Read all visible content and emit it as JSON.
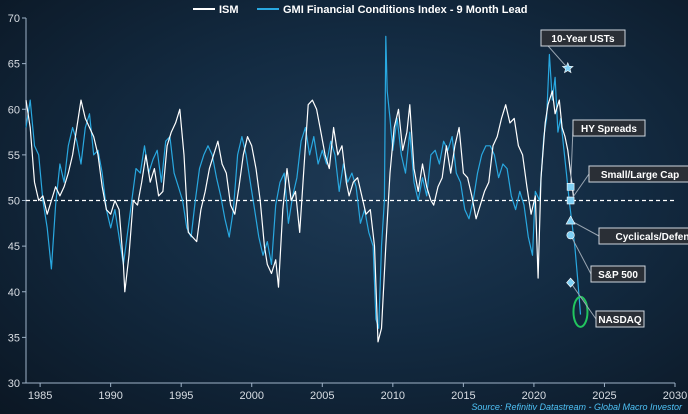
{
  "chart_data": {
    "type": "line",
    "title": "",
    "xlabel": "",
    "ylabel": "",
    "xlim": [
      1984,
      2030
    ],
    "ylim": [
      30,
      70
    ],
    "x_ticks": [
      "1985",
      "1990",
      "1995",
      "2000",
      "2005",
      "2010",
      "2015",
      "2020",
      "2025",
      "2030"
    ],
    "y_ticks": [
      "30",
      "35",
      "40",
      "45",
      "50",
      "55",
      "60",
      "65",
      "70"
    ],
    "reference_line": {
      "y": 50,
      "style": "dashed",
      "color": "#ffffff"
    },
    "grid": false,
    "legend_position": "top-center",
    "series": [
      {
        "name": "ISM",
        "color": "#ffffff",
        "points": [
          [
            1984.0,
            61.0
          ],
          [
            1984.3,
            58.0
          ],
          [
            1984.6,
            52.0
          ],
          [
            1984.9,
            50.0
          ],
          [
            1985.2,
            50.5
          ],
          [
            1985.5,
            48.5
          ],
          [
            1985.8,
            50.0
          ],
          [
            1986.1,
            51.5
          ],
          [
            1986.4,
            50.5
          ],
          [
            1986.7,
            51.5
          ],
          [
            1987.0,
            53.0
          ],
          [
            1987.3,
            55.0
          ],
          [
            1987.6,
            58.0
          ],
          [
            1987.9,
            61.0
          ],
          [
            1988.2,
            59.0
          ],
          [
            1988.5,
            58.0
          ],
          [
            1988.8,
            57.0
          ],
          [
            1989.1,
            55.0
          ],
          [
            1989.4,
            51.5
          ],
          [
            1989.7,
            49.0
          ],
          [
            1990.0,
            48.5
          ],
          [
            1990.3,
            50.0
          ],
          [
            1990.6,
            49.0
          ],
          [
            1990.9,
            43.0
          ],
          [
            1991.0,
            40.0
          ],
          [
            1991.3,
            44.0
          ],
          [
            1991.6,
            50.0
          ],
          [
            1991.9,
            49.5
          ],
          [
            1992.2,
            52.0
          ],
          [
            1992.5,
            55.0
          ],
          [
            1992.8,
            52.0
          ],
          [
            1993.1,
            53.5
          ],
          [
            1993.4,
            50.5
          ],
          [
            1993.7,
            51.0
          ],
          [
            1994.0,
            56.0
          ],
          [
            1994.3,
            57.5
          ],
          [
            1994.6,
            58.5
          ],
          [
            1994.9,
            60.0
          ],
          [
            1995.2,
            55.0
          ],
          [
            1995.5,
            46.5
          ],
          [
            1995.8,
            46.0
          ],
          [
            1996.1,
            45.5
          ],
          [
            1996.4,
            49.0
          ],
          [
            1996.7,
            51.0
          ],
          [
            1997.0,
            53.5
          ],
          [
            1997.3,
            55.0
          ],
          [
            1997.6,
            56.5
          ],
          [
            1997.9,
            54.0
          ],
          [
            1998.2,
            53.0
          ],
          [
            1998.5,
            49.5
          ],
          [
            1998.8,
            48.5
          ],
          [
            1999.1,
            51.5
          ],
          [
            1999.4,
            55.0
          ],
          [
            1999.7,
            57.0
          ],
          [
            2000.0,
            56.0
          ],
          [
            2000.3,
            53.5
          ],
          [
            2000.6,
            50.0
          ],
          [
            2000.9,
            45.0
          ],
          [
            2001.1,
            43.0
          ],
          [
            2001.4,
            42.0
          ],
          [
            2001.7,
            43.5
          ],
          [
            2001.9,
            40.5
          ],
          [
            2002.2,
            49.0
          ],
          [
            2002.5,
            53.5
          ],
          [
            2002.8,
            50.0
          ],
          [
            2003.1,
            51.0
          ],
          [
            2003.4,
            46.5
          ],
          [
            2003.7,
            53.5
          ],
          [
            2004.0,
            60.5
          ],
          [
            2004.3,
            61.0
          ],
          [
            2004.6,
            60.0
          ],
          [
            2004.9,
            57.5
          ],
          [
            2005.2,
            55.0
          ],
          [
            2005.5,
            53.5
          ],
          [
            2005.8,
            58.0
          ],
          [
            2006.1,
            55.0
          ],
          [
            2006.4,
            56.0
          ],
          [
            2006.7,
            52.0
          ],
          [
            2006.9,
            50.5
          ],
          [
            2007.2,
            52.0
          ],
          [
            2007.5,
            52.5
          ],
          [
            2007.8,
            50.5
          ],
          [
            2008.1,
            48.5
          ],
          [
            2008.4,
            49.0
          ],
          [
            2008.7,
            45.0
          ],
          [
            2008.95,
            34.5
          ],
          [
            2009.2,
            36.0
          ],
          [
            2009.5,
            45.0
          ],
          [
            2009.8,
            53.0
          ],
          [
            2010.1,
            58.0
          ],
          [
            2010.4,
            60.0
          ],
          [
            2010.7,
            55.5
          ],
          [
            2011.0,
            57.5
          ],
          [
            2011.2,
            60.5
          ],
          [
            2011.5,
            53.5
          ],
          [
            2011.8,
            51.0
          ],
          [
            2012.1,
            54.0
          ],
          [
            2012.4,
            51.5
          ],
          [
            2012.7,
            50.0
          ],
          [
            2012.9,
            49.5
          ],
          [
            2013.2,
            51.5
          ],
          [
            2013.5,
            52.5
          ],
          [
            2013.8,
            56.0
          ],
          [
            2014.1,
            53.0
          ],
          [
            2014.4,
            56.0
          ],
          [
            2014.7,
            58.0
          ],
          [
            2015.0,
            53.0
          ],
          [
            2015.3,
            52.5
          ],
          [
            2015.6,
            50.5
          ],
          [
            2015.9,
            48.0
          ],
          [
            2016.2,
            49.5
          ],
          [
            2016.5,
            51.0
          ],
          [
            2016.8,
            52.0
          ],
          [
            2017.1,
            56.0
          ],
          [
            2017.4,
            57.0
          ],
          [
            2017.7,
            59.0
          ],
          [
            2018.0,
            60.5
          ],
          [
            2018.3,
            58.5
          ],
          [
            2018.6,
            59.0
          ],
          [
            2018.9,
            56.0
          ],
          [
            2019.2,
            55.0
          ],
          [
            2019.5,
            51.5
          ],
          [
            2019.8,
            48.5
          ],
          [
            2020.1,
            50.5
          ],
          [
            2020.3,
            41.5
          ],
          [
            2020.5,
            52.5
          ],
          [
            2020.8,
            58.5
          ],
          [
            2021.0,
            60.5
          ],
          [
            2021.3,
            62.0
          ],
          [
            2021.5,
            59.5
          ],
          [
            2021.8,
            61.0
          ],
          [
            2022.0,
            58.0
          ],
          [
            2022.2,
            57.0
          ],
          [
            2022.4,
            55.5
          ],
          [
            2022.6,
            53.0
          ],
          [
            2022.8,
            50.5
          ]
        ]
      },
      {
        "name": "GMI Financial Conditions Index - 9 Month Lead",
        "color": "#29a8e0",
        "points": [
          [
            1984.0,
            58.0
          ],
          [
            1984.3,
            61.0
          ],
          [
            1984.6,
            56.0
          ],
          [
            1984.9,
            55.0
          ],
          [
            1985.2,
            50.0
          ],
          [
            1985.5,
            47.0
          ],
          [
            1985.8,
            42.5
          ],
          [
            1986.1,
            49.5
          ],
          [
            1986.4,
            54.0
          ],
          [
            1986.7,
            52.0
          ],
          [
            1987.0,
            56.0
          ],
          [
            1987.3,
            58.0
          ],
          [
            1987.6,
            56.5
          ],
          [
            1987.9,
            54.0
          ],
          [
            1988.2,
            58.0
          ],
          [
            1988.5,
            59.5
          ],
          [
            1988.8,
            55.0
          ],
          [
            1989.1,
            55.5
          ],
          [
            1989.4,
            53.0
          ],
          [
            1989.7,
            49.0
          ],
          [
            1990.0,
            47.0
          ],
          [
            1990.3,
            49.0
          ],
          [
            1990.6,
            46.0
          ],
          [
            1990.9,
            43.0
          ],
          [
            1991.2,
            46.5
          ],
          [
            1991.5,
            50.0
          ],
          [
            1991.8,
            53.5
          ],
          [
            1992.1,
            53.0
          ],
          [
            1992.4,
            56.0
          ],
          [
            1992.7,
            53.0
          ],
          [
            1993.0,
            54.5
          ],
          [
            1993.3,
            55.5
          ],
          [
            1993.6,
            52.0
          ],
          [
            1993.9,
            56.5
          ],
          [
            1994.2,
            57.0
          ],
          [
            1994.5,
            53.0
          ],
          [
            1994.8,
            51.5
          ],
          [
            1995.1,
            50.0
          ],
          [
            1995.4,
            47.0
          ],
          [
            1995.7,
            46.0
          ],
          [
            1996.0,
            50.0
          ],
          [
            1996.3,
            53.5
          ],
          [
            1996.6,
            55.0
          ],
          [
            1996.9,
            56.0
          ],
          [
            1997.2,
            55.0
          ],
          [
            1997.5,
            52.5
          ],
          [
            1997.8,
            50.5
          ],
          [
            1998.1,
            48.0
          ],
          [
            1998.4,
            46.0
          ],
          [
            1998.7,
            49.0
          ],
          [
            1999.0,
            55.0
          ],
          [
            1999.3,
            57.0
          ],
          [
            1999.6,
            55.0
          ],
          [
            1999.9,
            52.0
          ],
          [
            2000.2,
            49.0
          ],
          [
            2000.5,
            46.0
          ],
          [
            2000.8,
            44.0
          ],
          [
            2001.1,
            45.5
          ],
          [
            2001.4,
            43.0
          ],
          [
            2001.7,
            49.5
          ],
          [
            2002.0,
            52.0
          ],
          [
            2002.3,
            53.0
          ],
          [
            2002.6,
            47.5
          ],
          [
            2002.9,
            50.5
          ],
          [
            2003.2,
            52.5
          ],
          [
            2003.5,
            56.5
          ],
          [
            2003.8,
            58.0
          ],
          [
            2004.1,
            55.0
          ],
          [
            2004.4,
            57.0
          ],
          [
            2004.7,
            54.0
          ],
          [
            2005.0,
            55.5
          ],
          [
            2005.3,
            54.0
          ],
          [
            2005.6,
            56.5
          ],
          [
            2005.9,
            55.0
          ],
          [
            2006.2,
            51.0
          ],
          [
            2006.5,
            54.0
          ],
          [
            2006.8,
            52.0
          ],
          [
            2007.1,
            53.0
          ],
          [
            2007.4,
            51.5
          ],
          [
            2007.7,
            47.5
          ],
          [
            2008.0,
            49.0
          ],
          [
            2008.3,
            46.5
          ],
          [
            2008.6,
            45.0
          ],
          [
            2008.8,
            37.0
          ],
          [
            2009.0,
            36.0
          ],
          [
            2009.2,
            45.0
          ],
          [
            2009.4,
            50.0
          ],
          [
            2009.5,
            68.0
          ],
          [
            2009.6,
            62.0
          ],
          [
            2009.8,
            59.0
          ],
          [
            2010.0,
            55.5
          ],
          [
            2010.3,
            59.0
          ],
          [
            2010.6,
            55.0
          ],
          [
            2010.9,
            53.0
          ],
          [
            2011.2,
            57.5
          ],
          [
            2011.5,
            52.0
          ],
          [
            2011.8,
            50.0
          ],
          [
            2012.1,
            52.5
          ],
          [
            2012.4,
            50.5
          ],
          [
            2012.7,
            55.0
          ],
          [
            2013.0,
            55.5
          ],
          [
            2013.3,
            54.0
          ],
          [
            2013.6,
            56.5
          ],
          [
            2013.9,
            55.5
          ],
          [
            2014.2,
            57.0
          ],
          [
            2014.5,
            53.0
          ],
          [
            2014.8,
            52.0
          ],
          [
            2015.1,
            49.0
          ],
          [
            2015.4,
            48.0
          ],
          [
            2015.7,
            50.0
          ],
          [
            2016.0,
            53.0
          ],
          [
            2016.3,
            55.0
          ],
          [
            2016.6,
            56.0
          ],
          [
            2016.9,
            56.0
          ],
          [
            2017.2,
            55.0
          ],
          [
            2017.5,
            52.5
          ],
          [
            2017.8,
            54.0
          ],
          [
            2018.1,
            53.5
          ],
          [
            2018.4,
            50.5
          ],
          [
            2018.7,
            49.0
          ],
          [
            2019.0,
            51.0
          ],
          [
            2019.3,
            49.5
          ],
          [
            2019.6,
            46.0
          ],
          [
            2019.9,
            44.0
          ],
          [
            2020.1,
            51.0
          ],
          [
            2020.4,
            50.0
          ],
          [
            2020.7,
            57.0
          ],
          [
            2020.9,
            59.0
          ],
          [
            2021.1,
            66.0
          ],
          [
            2021.3,
            61.0
          ],
          [
            2021.5,
            63.5
          ],
          [
            2021.7,
            57.5
          ],
          [
            2021.9,
            59.0
          ],
          [
            2022.1,
            56.0
          ],
          [
            2022.3,
            53.0
          ],
          [
            2022.5,
            50.0
          ],
          [
            2022.7,
            47.5
          ],
          [
            2022.9,
            45.0
          ],
          [
            2023.1,
            41.5
          ],
          [
            2023.3,
            37.5
          ]
        ]
      }
    ],
    "annotations": [
      {
        "label": "10-Year USTs",
        "marker": "star",
        "x": 2022.4,
        "y": 64.5
      },
      {
        "label": "HY Spreads",
        "marker": "square",
        "x": 2022.6,
        "y": 51.5
      },
      {
        "label": "Small/Large Cap",
        "marker": "square",
        "x": 2022.6,
        "y": 50.0
      },
      {
        "label": "Cyclicals/Defensives",
        "marker": "triangle",
        "x": 2022.6,
        "y": 47.8
      },
      {
        "label": "S&P 500",
        "marker": "circle",
        "x": 2022.6,
        "y": 46.2
      },
      {
        "label": "NASDAQ",
        "marker": "diamond",
        "x": 2022.6,
        "y": 41.0
      }
    ],
    "highlight": {
      "shape": "ellipse",
      "color": "#22c55e",
      "x": 2023.3,
      "y": 37.8
    }
  },
  "source": "Source: Refinitiv Datastream - Global Macro Investor",
  "colors": {
    "axis": "#9fb3c8",
    "label_box_border": "#cfd6dd",
    "label_box_fill": "#2a2f36"
  }
}
